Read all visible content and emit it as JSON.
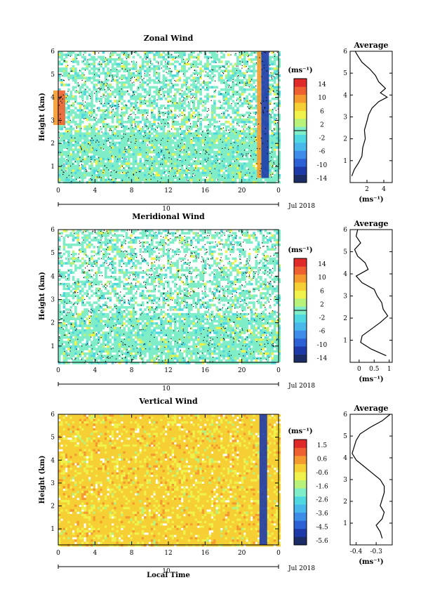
{
  "panels": [
    {
      "title": "Zonal Wind",
      "ylabel": "Height (km)",
      "xticks": [
        "0",
        "4",
        "8",
        "12",
        "16",
        "20",
        "0"
      ],
      "day_label": "10",
      "date_label": "Jul 2018",
      "cbar_unit": "(ms⁻¹)",
      "cbar_ticks": [
        "14",
        "10",
        "6",
        "2",
        "-2",
        "-6",
        "-10",
        "-14"
      ],
      "cbar_range": [
        -16,
        16
      ],
      "avg_title": "Average",
      "avg_xticks": [
        "2",
        "4"
      ],
      "avg_xlabel": "(ms⁻¹)"
    },
    {
      "title": "Meridional Wind",
      "ylabel": "Height (km)",
      "xticks": [
        "0",
        "4",
        "8",
        "12",
        "16",
        "20",
        "0"
      ],
      "day_label": "10",
      "date_label": "Jul 2018",
      "cbar_unit": "(ms⁻¹)",
      "cbar_ticks": [
        "14",
        "10",
        "6",
        "2",
        "-2",
        "-6",
        "-10",
        "-14"
      ],
      "cbar_range": [
        -16,
        16
      ],
      "avg_title": "Average",
      "avg_xticks": [
        "0",
        "0.5",
        "1"
      ],
      "avg_xlabel": "(ms⁻¹)"
    },
    {
      "title": "Vertical Wind",
      "ylabel": "Height (km)",
      "xticks": [
        "0",
        "4",
        "8",
        "12",
        "16",
        "20",
        "0"
      ],
      "day_label": "10",
      "date_label": "Jul 2018",
      "cbar_unit": "(ms⁻¹)",
      "cbar_ticks": [
        "1.5",
        "0.6",
        "-0.6",
        "-1.6",
        "-2.6",
        "-3.6",
        "-4.5",
        "-5.6"
      ],
      "cbar_range": [
        -6,
        2
      ],
      "avg_title": "Average",
      "avg_xticks": [
        "-0.4",
        "-0.3"
      ],
      "avg_xlabel": "(ms⁻¹)"
    }
  ],
  "xlabel_bottom": "Local Time",
  "chart_data": [
    {
      "type": "heatmap",
      "title": "Zonal Wind",
      "ylabel": "Height (km)",
      "x": "local time (h), 0 to 24",
      "ylim": [
        0.3,
        6.0
      ],
      "yticks": [
        1,
        2,
        3,
        4,
        5,
        6
      ],
      "colorbar_unit": "(ms⁻¹)",
      "colorbar_ticks": [
        14,
        10,
        6,
        2,
        -2,
        -6,
        -10,
        -14
      ],
      "dominant_value": 0,
      "features": [
        {
          "time": 0.3,
          "height_range": [
            2.8,
            4.3
          ],
          "value": 14
        },
        {
          "time": 22.5,
          "height_range": [
            0.5,
            6.0
          ],
          "value": -14
        }
      ],
      "profile": {
        "title": "Average",
        "xlabel": "(ms⁻¹)",
        "xlim": [
          0,
          5
        ],
        "ylim": [
          0,
          6
        ],
        "heights": [
          0.3,
          0.6,
          0.9,
          1.2,
          1.6,
          2.0,
          2.4,
          2.8,
          3.1,
          3.4,
          3.7,
          3.9,
          4.1,
          4.3,
          4.6,
          4.9,
          5.2,
          5.5,
          5.8,
          6.0
        ],
        "values": [
          0.2,
          0.5,
          1.0,
          1.4,
          1.5,
          1.8,
          1.7,
          2.0,
          2.2,
          2.6,
          3.4,
          4.4,
          3.6,
          4.2,
          3.4,
          3.0,
          2.3,
          1.4,
          0.9,
          0.6
        ]
      }
    },
    {
      "type": "heatmap",
      "title": "Meridional Wind",
      "ylabel": "Height (km)",
      "x": "local time (h), 0 to 24",
      "ylim": [
        0.3,
        6.0
      ],
      "yticks": [
        1,
        2,
        3,
        4,
        5,
        6
      ],
      "colorbar_unit": "(ms⁻¹)",
      "colorbar_ticks": [
        14,
        10,
        6,
        2,
        -2,
        -6,
        -10,
        -14
      ],
      "dominant_value": 0,
      "profile": {
        "title": "Average",
        "xlabel": "(ms⁻¹)",
        "xlim": [
          -0.3,
          1.1
        ],
        "ylim": [
          0,
          6
        ],
        "heights": [
          0.3,
          0.6,
          0.9,
          1.2,
          1.5,
          1.8,
          2.1,
          2.4,
          2.7,
          3.0,
          3.3,
          3.6,
          3.9,
          4.2,
          4.5,
          4.8,
          5.1,
          5.4,
          5.7,
          6.0
        ],
        "values": [
          0.9,
          0.4,
          0.05,
          0.1,
          0.4,
          0.7,
          0.95,
          0.8,
          0.75,
          0.6,
          0.5,
          0.1,
          -0.1,
          0.3,
          0.2,
          -0.05,
          -0.15,
          0.05,
          -0.1,
          -0.05
        ]
      }
    },
    {
      "type": "heatmap",
      "title": "Vertical Wind",
      "ylabel": "Height (km)",
      "xlabel": "Local Time",
      "x": "local time (h), 0 to 24",
      "ylim": [
        0.3,
        6.0
      ],
      "yticks": [
        1,
        2,
        3,
        4,
        5,
        6
      ],
      "colorbar_unit": "(ms⁻¹)",
      "colorbar_ticks": [
        1.5,
        0.6,
        -0.6,
        -1.6,
        -2.6,
        -3.6,
        -4.5,
        -5.6
      ],
      "dominant_value": 0.6,
      "features": [
        {
          "time": 22.3,
          "height_range": [
            0.3,
            6.0
          ],
          "value": -5.6
        }
      ],
      "profile": {
        "title": "Average",
        "xlabel": "(ms⁻¹)",
        "xlim": [
          -0.43,
          -0.22
        ],
        "ylim": [
          0,
          6
        ],
        "heights": [
          0.3,
          0.6,
          0.9,
          1.2,
          1.5,
          1.8,
          2.1,
          2.4,
          2.7,
          3.0,
          3.3,
          3.6,
          3.9,
          4.2,
          4.5,
          4.8,
          5.1,
          5.4,
          5.7,
          6.0
        ],
        "values": [
          -0.27,
          -0.28,
          -0.3,
          -0.27,
          -0.26,
          -0.28,
          -0.27,
          -0.26,
          -0.26,
          -0.28,
          -0.32,
          -0.36,
          -0.4,
          -0.42,
          -0.41,
          -0.4,
          -0.38,
          -0.33,
          -0.27,
          -0.23
        ]
      }
    }
  ]
}
